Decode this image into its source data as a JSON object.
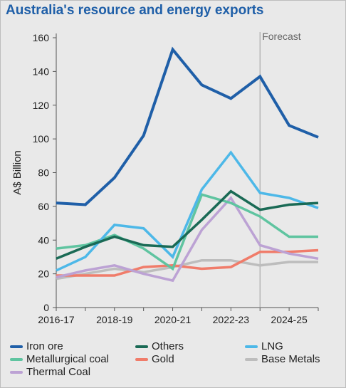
{
  "title": "Australia's resource and energy exports",
  "chart_data": {
    "type": "line",
    "ylabel": "A$ Billion",
    "xlabel": "",
    "forecast_label": "Forecast",
    "forecast_start_index": 7,
    "x": [
      "2016-17",
      "2017-18",
      "2018-19",
      "2019-20",
      "2020-21",
      "2021-22",
      "2022-23",
      "2023-24",
      "2024-25",
      "2025-26"
    ],
    "x_tick_labels": [
      "2016-17",
      "2018-19",
      "2020-21",
      "2022-23",
      "2024-25"
    ],
    "y_ticks": [
      0,
      20,
      40,
      60,
      80,
      100,
      120,
      140,
      160
    ],
    "ylim": [
      0,
      160
    ],
    "grid": false,
    "legend_position": "bottom",
    "series": [
      {
        "name": "Iron ore",
        "color": "#1f5fa8",
        "values": [
          62,
          61,
          77,
          102,
          153,
          132,
          124,
          137,
          108,
          101
        ]
      },
      {
        "name": "Others",
        "color": "#1a6a55",
        "values": [
          29,
          36,
          42,
          37,
          36,
          52,
          69,
          58,
          61,
          62
        ]
      },
      {
        "name": "LNG",
        "color": "#4db8e8",
        "values": [
          22,
          30,
          49,
          47,
          30,
          70,
          92,
          68,
          65,
          59
        ]
      },
      {
        "name": "Metallurgical coal",
        "color": "#5fc4a0",
        "values": [
          35,
          37,
          43,
          35,
          23,
          67,
          62,
          54,
          42,
          42
        ]
      },
      {
        "name": "Gold",
        "color": "#f07c6a",
        "values": [
          19,
          19,
          19,
          24,
          25,
          23,
          24,
          33,
          33,
          34
        ]
      },
      {
        "name": "Base Metals",
        "color": "#bdbdbd",
        "values": [
          17,
          20,
          23,
          21,
          24,
          28,
          28,
          25,
          27,
          27
        ]
      },
      {
        "name": "Thermal Coal",
        "color": "#bca2d4",
        "values": [
          18,
          22,
          25,
          20,
          16,
          46,
          65,
          37,
          32,
          29
        ]
      }
    ]
  }
}
